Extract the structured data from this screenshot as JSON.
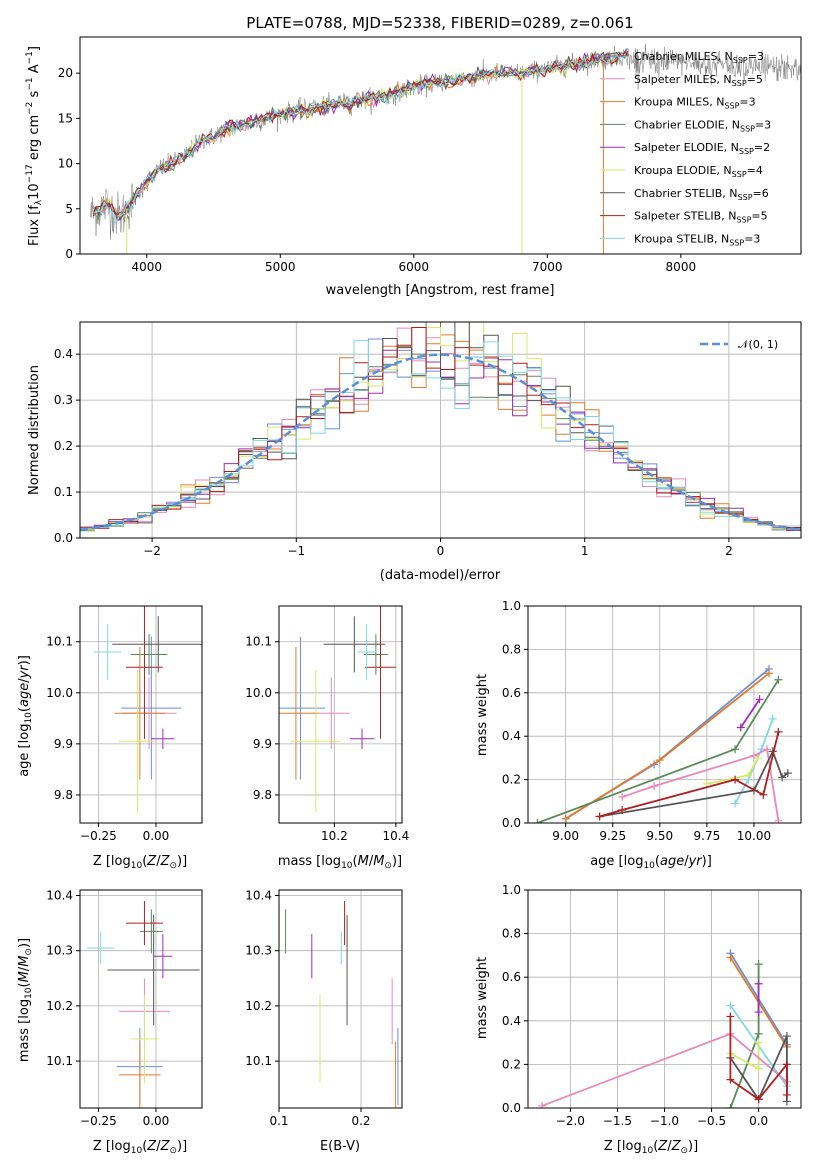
{
  "chart_data": [
    {
      "id": "spectrum",
      "type": "line",
      "title": "PLATE=0788, MJD=52338, FIBERID=0289, z=0.061",
      "xlabel": "wavelength [Angstrom, rest frame]",
      "ylabel": "Flux [f_λ 10^-17 erg cm^-2 s^-1 A^-1]",
      "xlim": [
        3500,
        8900
      ],
      "ylim": [
        0,
        24
      ],
      "xticks": [
        4000,
        5000,
        6000,
        7000,
        8000
      ],
      "yticks": [
        0,
        5,
        10,
        15,
        20
      ],
      "grid": false,
      "legend": "top-right",
      "spectrum_anchors": {
        "x": [
          3600,
          3700,
          3800,
          3900,
          4000,
          4100,
          4200,
          4300,
          4400,
          4500,
          4600,
          4800,
          5000,
          5200,
          5400,
          5600,
          5800,
          6000,
          6200,
          6400,
          6600,
          6800,
          7000,
          7200,
          7400,
          7600
        ],
        "y": [
          4.5,
          5.5,
          4.0,
          6.0,
          8.0,
          9.5,
          10.0,
          11.0,
          12.5,
          13.0,
          14.0,
          14.5,
          15.5,
          16.0,
          16.5,
          17.0,
          17.5,
          18.5,
          19.0,
          19.5,
          20.0,
          20.0,
          20.5,
          21.0,
          21.5,
          22.0
        ]
      },
      "series": [
        {
          "name": "Chabrier MILES",
          "nssp": "3",
          "color": "#6a8fd9"
        },
        {
          "name": "Salpeter MILES",
          "nssp": "5",
          "color": "#e58ab9"
        },
        {
          "name": "Kroupa MILES",
          "nssp": "3",
          "color": "#e07d2c"
        },
        {
          "name": "Chabrier ELODIE",
          "nssp": "3",
          "color": "#5a8a5a"
        },
        {
          "name": "Salpeter ELODIE",
          "nssp": "2",
          "color": "#9b2fb8"
        },
        {
          "name": "Kroupa ELODIE",
          "nssp": "4",
          "color": "#d8e86a"
        },
        {
          "name": "Chabrier STELIB",
          "nssp": "6",
          "color": "#555555"
        },
        {
          "name": "Salpeter STELIB",
          "nssp": "5",
          "color": "#b01e1e"
        },
        {
          "name": "Kroupa STELIB",
          "nssp": "3",
          "color": "#80d8e0"
        }
      ]
    },
    {
      "id": "residuals",
      "type": "histogram",
      "xlabel": "(data-model)/error",
      "ylabel": "Normed distribution",
      "xlim": [
        -2.5,
        2.5
      ],
      "ylim": [
        0,
        0.47
      ],
      "xticks": [
        -2,
        -1,
        0,
        1,
        2
      ],
      "yticks": [
        0.0,
        0.1,
        0.2,
        0.3,
        0.4
      ],
      "grid": true,
      "legend": "top-right",
      "gaussian_label": "𝒩(0, 1)",
      "bin_width": 0.1
    },
    {
      "id": "age_vs_Z",
      "type": "errorbar",
      "xlabel": "Z [log10(Z/Z⊙)]",
      "ylabel": "age [log10(age/yr)]",
      "xlim": [
        -0.33,
        0.2
      ],
      "ylim": [
        9.745,
        10.17
      ],
      "xticks": [
        -0.25,
        0.0
      ],
      "yticks": [
        9.8,
        9.9,
        10.0,
        10.1
      ],
      "grid": true,
      "points": [
        {
          "color": "#6a8fd9",
          "x": -0.02,
          "xerr": 0.13,
          "y": 9.97,
          "yerr": 0.14
        },
        {
          "color": "#e58ab9",
          "x": -0.03,
          "xerr": 0.12,
          "y": 9.96,
          "yerr": 0.07
        },
        {
          "color": "#e07d2c",
          "x": -0.07,
          "xerr": 0.11,
          "y": 9.96,
          "yerr": 0.13
        },
        {
          "color": "#5a8a5a",
          "x": -0.03,
          "xerr": 0.08,
          "y": 10.075,
          "yerr": 0.04
        },
        {
          "color": "#9b2fb8",
          "x": 0.03,
          "xerr": 0.05,
          "y": 9.91,
          "yerr": 0.02
        },
        {
          "color": "#d8e86a",
          "x": -0.08,
          "xerr": 0.08,
          "y": 9.905,
          "yerr": 0.14
        },
        {
          "color": "#555555",
          "x": 0.01,
          "xerr": 0.2,
          "y": 10.095,
          "yerr": 0.055
        },
        {
          "color": "#b01e1e",
          "x": -0.05,
          "xerr": 0.08,
          "y": 10.05,
          "yerr": 0.14
        },
        {
          "color": "#80d8e0",
          "x": -0.21,
          "xerr": 0.06,
          "y": 10.08,
          "yerr": 0.055
        }
      ]
    },
    {
      "id": "age_vs_mass",
      "type": "errorbar",
      "xlabel": "mass [log10(M/M⊙)]",
      "ylabel": "",
      "xlim": [
        10.02,
        10.42
      ],
      "ylim": [
        9.745,
        10.17
      ],
      "xticks": [
        10.2,
        10.4
      ],
      "yticks": [
        9.8,
        9.9,
        10.0,
        10.1
      ],
      "grid": true,
      "points": [
        {
          "color": "#6a8fd9",
          "x": 10.09,
          "xerr": 0.08,
          "y": 9.97,
          "yerr": 0.14
        },
        {
          "color": "#e58ab9",
          "x": 10.19,
          "xerr": 0.06,
          "y": 9.96,
          "yerr": 0.07
        },
        {
          "color": "#e07d2c",
          "x": 10.075,
          "xerr": 0.07,
          "y": 9.96,
          "yerr": 0.13
        },
        {
          "color": "#5a8a5a",
          "x": 10.335,
          "xerr": 0.04,
          "y": 10.075,
          "yerr": 0.04
        },
        {
          "color": "#9b2fb8",
          "x": 10.29,
          "xerr": 0.04,
          "y": 9.91,
          "yerr": 0.02
        },
        {
          "color": "#d8e86a",
          "x": 10.14,
          "xerr": 0.08,
          "y": 9.905,
          "yerr": 0.14
        },
        {
          "color": "#555555",
          "x": 10.265,
          "xerr": 0.1,
          "y": 10.095,
          "yerr": 0.055
        },
        {
          "color": "#b01e1e",
          "x": 10.35,
          "xerr": 0.05,
          "y": 10.05,
          "yerr": 0.14
        },
        {
          "color": "#80d8e0",
          "x": 10.305,
          "xerr": 0.03,
          "y": 10.08,
          "yerr": 0.055
        }
      ]
    },
    {
      "id": "weight_vs_age",
      "type": "line",
      "xlabel": "age [log10(age/yr)]",
      "ylabel": "mass weight",
      "xlim": [
        8.8,
        10.25
      ],
      "ylim": [
        0.0,
        1.0
      ],
      "xticks": [
        9.0,
        9.25,
        9.5,
        9.75,
        10.0
      ],
      "yticks": [
        0.0,
        0.2,
        0.4,
        0.6,
        0.8,
        1.0
      ],
      "grid": true,
      "series": [
        {
          "color": "#6a8fd9",
          "x": [
            9.0,
            9.47,
            10.08
          ],
          "y": [
            0.02,
            0.27,
            0.71
          ]
        },
        {
          "color": "#e07d2c",
          "x": [
            9.0,
            9.5,
            10.08
          ],
          "y": [
            0.02,
            0.29,
            0.69
          ]
        },
        {
          "color": "#5a8a5a",
          "x": [
            8.85,
            9.9,
            10.13
          ],
          "y": [
            0.0,
            0.34,
            0.66
          ]
        },
        {
          "color": "#9b2fb8",
          "x": [
            9.93,
            10.03
          ],
          "y": [
            0.44,
            0.57
          ]
        },
        {
          "color": "#80d8e0",
          "x": [
            9.9,
            9.97,
            10.04,
            10.1
          ],
          "y": [
            0.09,
            0.2,
            0.34,
            0.48
          ]
        },
        {
          "color": "#d8e86a",
          "x": [
            9.75,
            9.97,
            10.02
          ],
          "y": [
            0.18,
            0.22,
            0.3
          ]
        },
        {
          "color": "#e58ab9",
          "x": [
            9.3,
            9.47,
            10.0,
            10.07,
            10.13
          ],
          "y": [
            0.12,
            0.17,
            0.31,
            0.34,
            0.01
          ]
        },
        {
          "color": "#555555",
          "x": [
            9.18,
            10.0,
            10.1,
            10.15,
            10.18
          ],
          "y": [
            0.03,
            0.15,
            0.33,
            0.21,
            0.23
          ]
        },
        {
          "color": "#b01e1e",
          "x": [
            9.18,
            9.3,
            9.9,
            10.05,
            10.13
          ],
          "y": [
            0.03,
            0.06,
            0.2,
            0.13,
            0.42
          ]
        }
      ]
    },
    {
      "id": "mass_vs_Z",
      "type": "errorbar",
      "xlabel": "Z [log10(Z/Z⊙)]",
      "ylabel": "mass [log10(M/M⊙)]",
      "xlim": [
        -0.33,
        0.2
      ],
      "ylim": [
        10.015,
        10.41
      ],
      "xticks": [
        -0.25,
        0.0
      ],
      "yticks": [
        10.1,
        10.2,
        10.3,
        10.4
      ],
      "grid": true,
      "points": [
        {
          "color": "#6a8fd9",
          "x": -0.07,
          "xerr": 0.1,
          "y": 10.09,
          "yerr": 0.07
        },
        {
          "color": "#e58ab9",
          "x": -0.05,
          "xerr": 0.11,
          "y": 10.19,
          "yerr": 0.06
        },
        {
          "color": "#e07d2c",
          "x": -0.07,
          "xerr": 0.09,
          "y": 10.075,
          "yerr": 0.06
        },
        {
          "color": "#5a8a5a",
          "x": -0.02,
          "xerr": 0.05,
          "y": 10.335,
          "yerr": 0.04
        },
        {
          "color": "#9b2fb8",
          "x": 0.03,
          "xerr": 0.04,
          "y": 10.29,
          "yerr": 0.04
        },
        {
          "color": "#d8e86a",
          "x": -0.05,
          "xerr": 0.06,
          "y": 10.14,
          "yerr": 0.08
        },
        {
          "color": "#555555",
          "x": -0.01,
          "xerr": 0.2,
          "y": 10.265,
          "yerr": 0.1
        },
        {
          "color": "#b01e1e",
          "x": -0.05,
          "xerr": 0.08,
          "y": 10.35,
          "yerr": 0.04
        },
        {
          "color": "#80d8e0",
          "x": -0.24,
          "xerr": 0.06,
          "y": 10.305,
          "yerr": 0.03
        }
      ]
    },
    {
      "id": "mass_vs_EBV",
      "type": "errorbar",
      "xlabel": "E(B-V)",
      "ylabel": "",
      "xlim": [
        0.1,
        0.25
      ],
      "ylim": [
        10.015,
        10.41
      ],
      "xticks": [
        0.1,
        0.2
      ],
      "yticks": [
        10.1,
        10.2,
        10.3,
        10.4
      ],
      "grid": true,
      "points": [
        {
          "color": "#6a8fd9",
          "x": 0.245,
          "xerr": 0.0,
          "y": 10.09,
          "yerr": 0.07
        },
        {
          "color": "#e58ab9",
          "x": 0.238,
          "xerr": 0.0,
          "y": 10.19,
          "yerr": 0.06
        },
        {
          "color": "#e07d2c",
          "x": 0.242,
          "xerr": 0.0,
          "y": 10.075,
          "yerr": 0.06
        },
        {
          "color": "#5a8a5a",
          "x": 0.108,
          "xerr": 0.0,
          "y": 10.335,
          "yerr": 0.04
        },
        {
          "color": "#9b2fb8",
          "x": 0.14,
          "xerr": 0.0,
          "y": 10.29,
          "yerr": 0.04
        },
        {
          "color": "#d8e86a",
          "x": 0.15,
          "xerr": 0.0,
          "y": 10.14,
          "yerr": 0.08
        },
        {
          "color": "#555555",
          "x": 0.183,
          "xerr": 0.0,
          "y": 10.265,
          "yerr": 0.1
        },
        {
          "color": "#b01e1e",
          "x": 0.18,
          "xerr": 0.0,
          "y": 10.35,
          "yerr": 0.04
        },
        {
          "color": "#80d8e0",
          "x": 0.176,
          "xerr": 0.0,
          "y": 10.305,
          "yerr": 0.03
        }
      ]
    },
    {
      "id": "weight_vs_Z",
      "type": "line",
      "xlabel": "Z [log10(Z/Z⊙)]",
      "ylabel": "mass weight",
      "xlim": [
        -2.45,
        0.45
      ],
      "ylim": [
        0.0,
        1.0
      ],
      "xticks": [
        -2.0,
        -1.5,
        -1.0,
        -0.5,
        0.0
      ],
      "yticks": [
        0.0,
        0.2,
        0.4,
        0.6,
        0.8,
        1.0
      ],
      "grid": true,
      "series": [
        {
          "color": "#6a8fd9",
          "x": [
            -0.3,
            0.3
          ],
          "y": [
            0.71,
            0.29
          ]
        },
        {
          "color": "#e07d2c",
          "x": [
            -0.3,
            0.3
          ],
          "y": [
            0.69,
            0.28
          ]
        },
        {
          "color": "#5a8a5a",
          "x": [
            -0.3,
            0.0,
            0.0
          ],
          "y": [
            0.0,
            0.34,
            0.66
          ]
        },
        {
          "color": "#9b2fb8",
          "x": [
            0.0,
            0.0
          ],
          "y": [
            0.44,
            0.57
          ]
        },
        {
          "color": "#80d8e0",
          "x": [
            -0.3,
            0.3
          ],
          "y": [
            0.47,
            0.1
          ]
        },
        {
          "color": "#d8e86a",
          "x": [
            -0.3,
            0.0,
            0.0
          ],
          "y": [
            0.25,
            0.18,
            0.3
          ]
        },
        {
          "color": "#e58ab9",
          "x": [
            -2.3,
            -0.3,
            0.3
          ],
          "y": [
            0.01,
            0.34,
            0.12
          ]
        },
        {
          "color": "#555555",
          "x": [
            -0.3,
            0.0,
            0.3,
            0.3
          ],
          "y": [
            0.23,
            0.04,
            0.33,
            0.03
          ]
        },
        {
          "color": "#b01e1e",
          "x": [
            -0.3,
            -0.3,
            0.0,
            0.3,
            0.3
          ],
          "y": [
            0.42,
            0.13,
            0.04,
            0.2,
            0.06
          ]
        }
      ]
    }
  ]
}
